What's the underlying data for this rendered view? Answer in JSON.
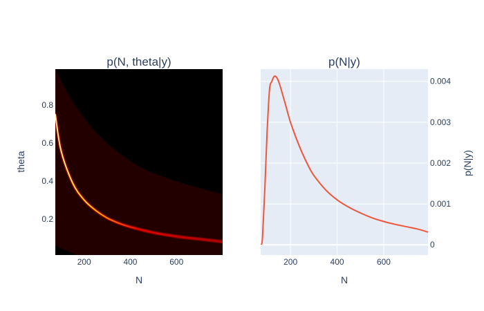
{
  "chart_data": [
    {
      "type": "heatmap",
      "title": "p(N, theta|y)",
      "xlabel": "N",
      "ylabel": "theta",
      "xlim": [
        75,
        800
      ],
      "ylim": [
        0.01,
        0.99
      ],
      "x_ticks": [
        200,
        400,
        600
      ],
      "y_ticks": [
        0.2,
        0.4,
        0.6,
        0.8
      ],
      "x_tick_labels": [
        "200",
        "400",
        "600"
      ],
      "y_tick_labels": [
        "0.2",
        "0.4",
        "0.6",
        "0.8"
      ],
      "colorscale": [
        "#000000",
        "#230000",
        "#ff0000",
        "#ffff00"
      ],
      "ridge": {
        "x": [
          75,
          100,
          150,
          200,
          250,
          300,
          350,
          400,
          500,
          600,
          700,
          800
        ],
        "y": [
          0.75,
          0.56,
          0.39,
          0.3,
          0.245,
          0.205,
          0.178,
          0.158,
          0.128,
          0.108,
          0.094,
          0.08
        ]
      },
      "support_boundary": {
        "x": [
          75,
          150,
          250,
          350,
          450,
          550,
          650,
          800
        ],
        "y": [
          0.99,
          0.82,
          0.66,
          0.55,
          0.47,
          0.42,
          0.38,
          0.33
        ]
      },
      "grid": false,
      "legend": false
    },
    {
      "type": "line",
      "title": "p(N|y)",
      "xlabel": "N",
      "ylabel": "p(N|y)",
      "xlim": [
        72,
        790
      ],
      "ylim": [
        -0.00025,
        0.0043
      ],
      "x_ticks": [
        200,
        400,
        600
      ],
      "y_ticks": [
        0,
        0.001,
        0.002,
        0.003,
        0.004
      ],
      "x_tick_labels": [
        "200",
        "400",
        "600"
      ],
      "y_tick_labels": [
        "0",
        "0.001",
        "0.002",
        "0.003",
        "0.004"
      ],
      "y_axis_side": "right",
      "grid": true,
      "legend": false,
      "series": [
        {
          "color": "#ef553b",
          "x": [
            75,
            80,
            90,
            100,
            110,
            120,
            130,
            140,
            150,
            160,
            180,
            200,
            225,
            250,
            275,
            300,
            350,
            400,
            450,
            500,
            550,
            600,
            650,
            700,
            750,
            790
          ],
          "y": [
            0.0,
            0.0002,
            0.0014,
            0.0028,
            0.0038,
            0.004,
            0.00412,
            0.0041,
            0.00398,
            0.0038,
            0.0034,
            0.003,
            0.0026,
            0.00225,
            0.00195,
            0.0017,
            0.00135,
            0.0011,
            0.00092,
            0.00078,
            0.00066,
            0.00057,
            0.0005,
            0.00044,
            0.00038,
            0.00031
          ]
        }
      ]
    }
  ]
}
